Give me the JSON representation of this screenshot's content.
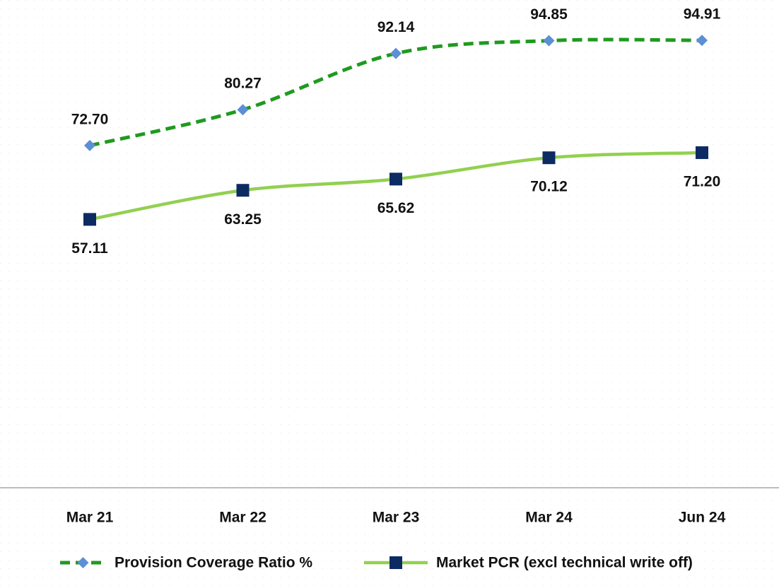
{
  "chart_data": {
    "type": "line",
    "categories": [
      "Mar 21",
      "Mar 22",
      "Mar 23",
      "Mar 24",
      "Jun 24"
    ],
    "series": [
      {
        "name": "Provision Coverage Ratio %",
        "color": "#1f9a1f",
        "marker_color": "#5b8fd6",
        "marker": "diamond",
        "dashed": true,
        "values": [
          72.7,
          80.27,
          92.14,
          94.85,
          94.91
        ],
        "value_labels": [
          "72.70",
          "80.27",
          "92.14",
          "94.85",
          "94.91"
        ]
      },
      {
        "name": "Market PCR (excl technical write off)",
        "color": "#92d050",
        "marker_color": "#0d2b63",
        "marker": "square",
        "dashed": false,
        "values": [
          57.11,
          63.25,
          65.62,
          70.12,
          71.2
        ],
        "value_labels": [
          "57.11",
          "63.25",
          "65.62",
          "70.12",
          "71.20"
        ]
      }
    ],
    "ylim": [
      0,
      100
    ]
  }
}
